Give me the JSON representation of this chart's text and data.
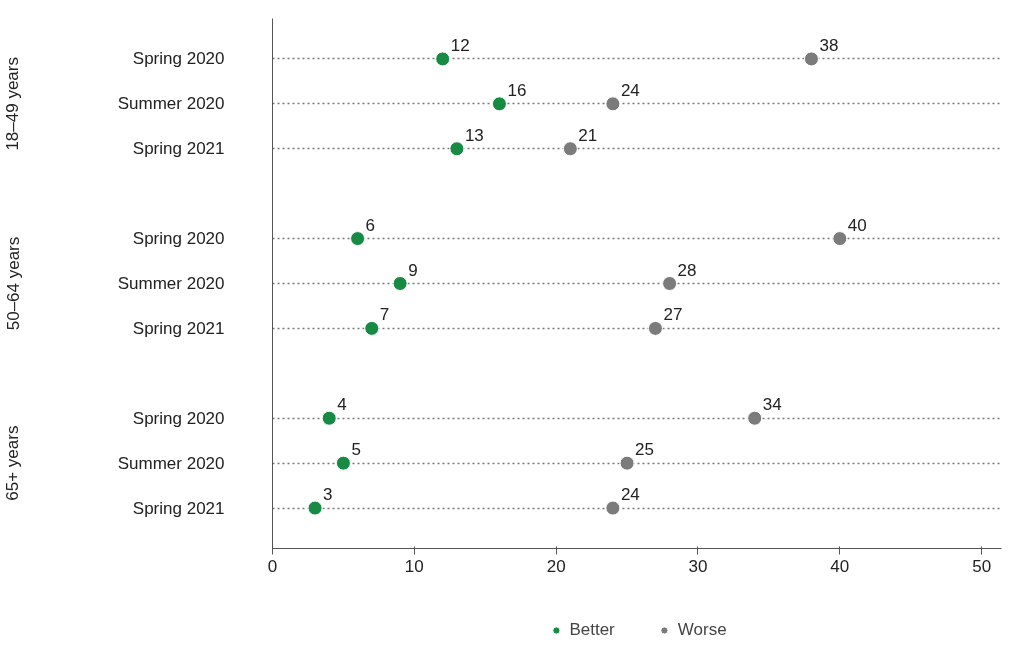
{
  "chart_data": {
    "type": "scatter",
    "orientation": "horizontal",
    "categories": [
      "Spring 2020",
      "Summer 2020",
      "Spring 2021",
      null,
      "Spring 2020",
      "Summer 2020",
      "Spring 2021",
      null,
      "Spring 2020",
      "Summer 2020",
      "Spring 2021"
    ],
    "series": [
      {
        "name": "Better",
        "color": "#178a44",
        "values": [
          12,
          16,
          13,
          null,
          6,
          9,
          7,
          null,
          4,
          5,
          3
        ]
      },
      {
        "name": "Worse",
        "color": "#7b7b7b",
        "values": [
          38,
          24,
          21,
          null,
          40,
          28,
          27,
          null,
          34,
          25,
          24
        ]
      }
    ],
    "annotations": [
      "18–49 years",
      "50–64 years",
      "65+ years"
    ],
    "xlim": [
      0,
      51.4
    ],
    "xticks": [
      0,
      10,
      20,
      30,
      40,
      50
    ],
    "grid": "y",
    "legend": "bottom",
    "marker": "circle",
    "data_labels": true
  }
}
